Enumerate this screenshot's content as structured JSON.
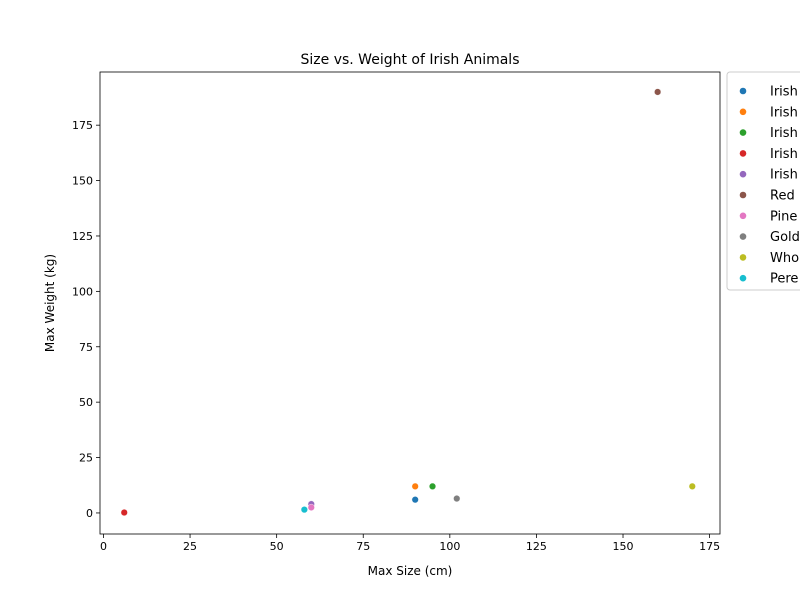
{
  "chart_data": {
    "type": "scatter",
    "title": "Size vs. Weight of Irish Animals",
    "xlabel": "Max Size (cm)",
    "ylabel": "Max Weight (kg)",
    "xlim": [
      -1,
      178
    ],
    "ylim": [
      -9.5,
      199
    ],
    "xticks": [
      0,
      25,
      50,
      75,
      100,
      125,
      150,
      175
    ],
    "yticks": [
      0,
      25,
      50,
      75,
      100,
      125,
      150,
      175
    ],
    "grid": false,
    "legend_position": "outside-right",
    "series": [
      {
        "name": "Irish",
        "color": "#1f77b4",
        "points": [
          {
            "x": 90,
            "y": 6
          }
        ]
      },
      {
        "name": "Irish",
        "color": "#ff7f0e",
        "points": [
          {
            "x": 90,
            "y": 12
          }
        ]
      },
      {
        "name": "Irish",
        "color": "#2ca02c",
        "points": [
          {
            "x": 95,
            "y": 12
          }
        ]
      },
      {
        "name": "Irish",
        "color": "#d62728",
        "points": [
          {
            "x": 6,
            "y": 0.2
          }
        ]
      },
      {
        "name": "Irish",
        "color": "#9467bd",
        "points": [
          {
            "x": 60,
            "y": 4
          }
        ]
      },
      {
        "name": "Red",
        "color": "#8c564b",
        "points": [
          {
            "x": 160,
            "y": 190
          }
        ]
      },
      {
        "name": "Pine",
        "color": "#e377c2",
        "points": [
          {
            "x": 60,
            "y": 2.5
          }
        ]
      },
      {
        "name": "Gold",
        "color": "#7f7f7f",
        "points": [
          {
            "x": 102,
            "y": 6.5
          }
        ]
      },
      {
        "name": "Who",
        "color": "#bcbd22",
        "points": [
          {
            "x": 170,
            "y": 12
          }
        ]
      },
      {
        "name": "Pere",
        "color": "#17becf",
        "points": [
          {
            "x": 58,
            "y": 1.5
          }
        ]
      }
    ]
  }
}
